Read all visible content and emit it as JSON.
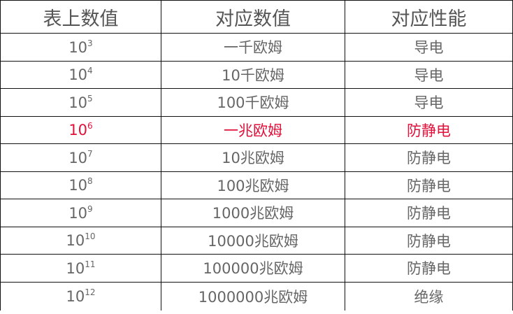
{
  "headers": [
    "表上数值",
    "对应数值",
    "对应性能"
  ],
  "highlight_color": "#e0103a",
  "rows": [
    {
      "base": "10",
      "exp": "3",
      "value": "一千欧姆",
      "property": "导电",
      "highlight": false
    },
    {
      "base": "10",
      "exp": "4",
      "value": "10千欧姆",
      "property": "导电",
      "highlight": false
    },
    {
      "base": "10",
      "exp": "5",
      "value": "100千欧姆",
      "property": "导电",
      "highlight": false
    },
    {
      "base": "10",
      "exp": "6",
      "value": "一兆欧姆",
      "property": "防静电",
      "highlight": true
    },
    {
      "base": "10",
      "exp": "7",
      "value": "10兆欧姆",
      "property": "防静电",
      "highlight": false
    },
    {
      "base": "10",
      "exp": "8",
      "value": "100兆欧姆",
      "property": "防静电",
      "highlight": false
    },
    {
      "base": "10",
      "exp": "9",
      "value": "1000兆欧姆",
      "property": "防静电",
      "highlight": false
    },
    {
      "base": "10",
      "exp": "10",
      "value": "10000兆欧姆",
      "property": "防静电",
      "highlight": false
    },
    {
      "base": "10",
      "exp": "11",
      "value": "100000兆欧姆",
      "property": "防静电",
      "highlight": false
    },
    {
      "base": "10",
      "exp": "12",
      "value": "1000000兆欧姆",
      "property": "绝缘",
      "highlight": false
    }
  ]
}
